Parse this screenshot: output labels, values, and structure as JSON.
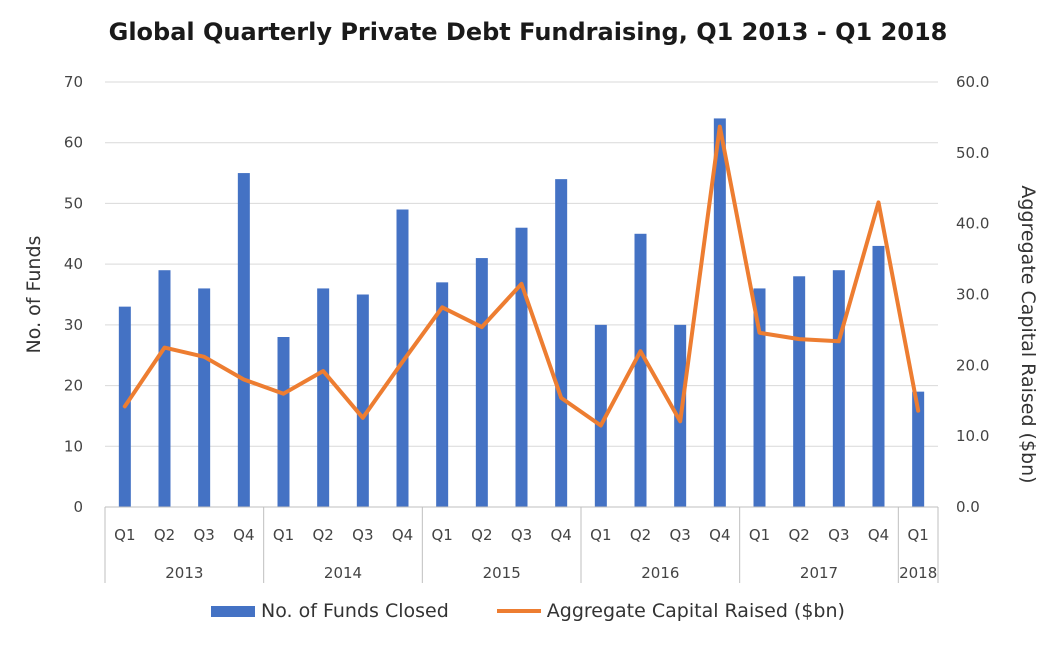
{
  "chart_data": {
    "type": "bar",
    "title": "Global Quarterly Private Debt Fundraising, Q1 2013 - Q1 2018",
    "ylabel": "No. of Funds",
    "y2label": "Aggregate Capital Raised ($bn)",
    "ylim": [
      0,
      70
    ],
    "y2lim": [
      0,
      60
    ],
    "y_ticks": [
      "0",
      "10",
      "20",
      "30",
      "40",
      "50",
      "60",
      "70"
    ],
    "y2_ticks": [
      "0.0",
      "10.0",
      "20.0",
      "30.0",
      "40.0",
      "50.0",
      "60.0"
    ],
    "grid": true,
    "legend_position": "bottom",
    "categories": [
      "Q1",
      "Q2",
      "Q3",
      "Q4",
      "Q1",
      "Q2",
      "Q3",
      "Q4",
      "Q1",
      "Q2",
      "Q3",
      "Q4",
      "Q1",
      "Q2",
      "Q3",
      "Q4",
      "Q1",
      "Q2",
      "Q3",
      "Q4",
      "Q1"
    ],
    "years": [
      {
        "label": "2013",
        "span": 4
      },
      {
        "label": "2014",
        "span": 4
      },
      {
        "label": "2015",
        "span": 4
      },
      {
        "label": "2016",
        "span": 4
      },
      {
        "label": "2017",
        "span": 4
      },
      {
        "label": "2018",
        "span": 1
      }
    ],
    "series": [
      {
        "name": "No. of Funds Closed",
        "type": "bar",
        "axis": "left",
        "color": "#4472C4",
        "values": [
          33,
          39,
          36,
          55,
          28,
          36,
          35,
          49,
          37,
          41,
          46,
          54,
          30,
          45,
          30,
          64,
          36,
          38,
          39,
          43,
          19
        ]
      },
      {
        "name": "Aggregate Capital Raised ($bn)",
        "type": "line",
        "axis": "right",
        "color": "#ED7D31",
        "values": [
          14.2,
          22.5,
          21.2,
          18.0,
          16.0,
          19.2,
          12.6,
          20.5,
          28.2,
          25.4,
          31.5,
          15.4,
          11.5,
          22.0,
          12.1,
          53.7,
          24.6,
          23.7,
          23.4,
          43.0,
          13.6
        ]
      }
    ]
  }
}
